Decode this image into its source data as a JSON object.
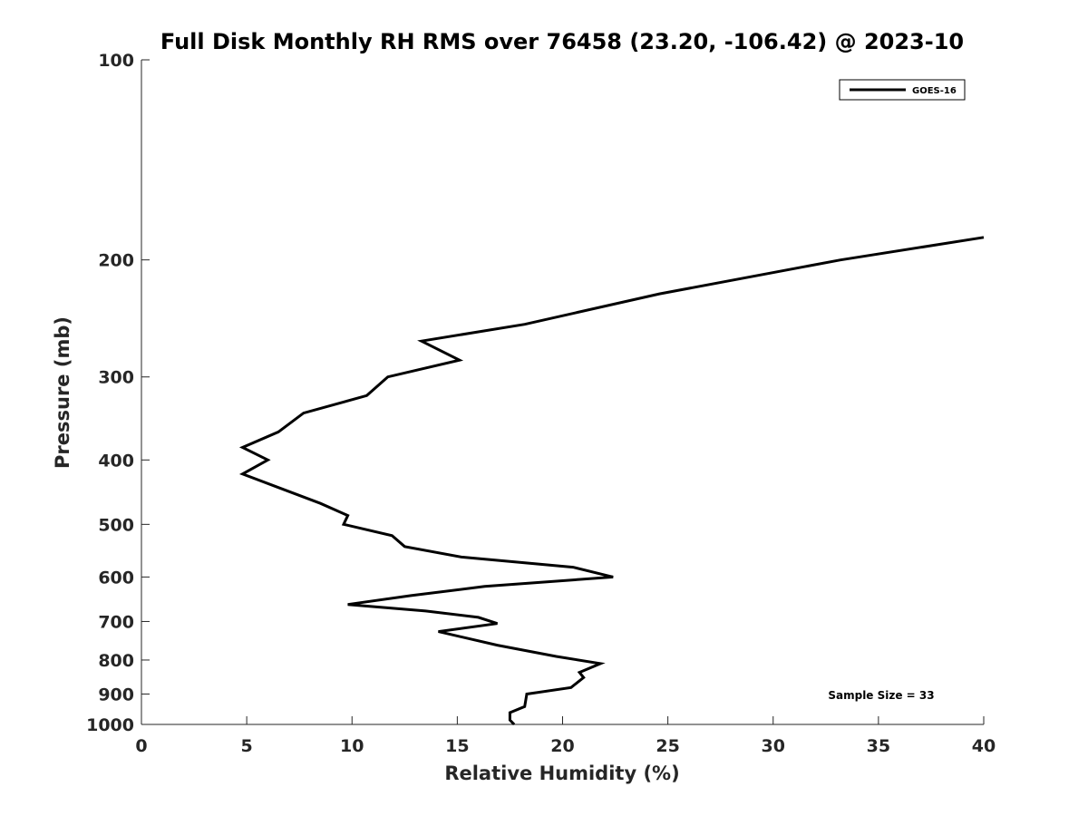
{
  "chart_data": {
    "type": "line",
    "title": "Full Disk Monthly RH RMS over 76458 (23.20, -106.42) @ 2023-10",
    "xlabel": "Relative Humidity (%)",
    "ylabel": "Pressure (mb)",
    "xlim": [
      0,
      40
    ],
    "ylim": [
      100,
      1000
    ],
    "y_scale": "log",
    "y_reversed": true,
    "x_ticks": [
      "0",
      "5",
      "10",
      "15",
      "20",
      "25",
      "30",
      "35",
      "40"
    ],
    "y_ticks": [
      100,
      200,
      300,
      400,
      500,
      600,
      700,
      800,
      900,
      1000
    ],
    "grid": false,
    "legend_position": "top-right",
    "annotation": "Sample Size = 33",
    "series": [
      {
        "name": "GOES-16",
        "color": "#000000",
        "points": [
          {
            "x": 40.0,
            "p": 185
          },
          {
            "x": 33.2,
            "p": 200
          },
          {
            "x": 24.6,
            "p": 225
          },
          {
            "x": 18.2,
            "p": 250
          },
          {
            "x": 13.3,
            "p": 265
          },
          {
            "x": 15.1,
            "p": 283
          },
          {
            "x": 11.7,
            "p": 300
          },
          {
            "x": 10.7,
            "p": 320
          },
          {
            "x": 7.7,
            "p": 340
          },
          {
            "x": 6.5,
            "p": 363
          },
          {
            "x": 4.8,
            "p": 383
          },
          {
            "x": 6.0,
            "p": 400
          },
          {
            "x": 4.8,
            "p": 420
          },
          {
            "x": 6.5,
            "p": 440
          },
          {
            "x": 8.5,
            "p": 465
          },
          {
            "x": 9.8,
            "p": 485
          },
          {
            "x": 9.6,
            "p": 500
          },
          {
            "x": 11.9,
            "p": 520
          },
          {
            "x": 12.5,
            "p": 540
          },
          {
            "x": 15.2,
            "p": 560
          },
          {
            "x": 20.5,
            "p": 580
          },
          {
            "x": 22.4,
            "p": 600
          },
          {
            "x": 16.3,
            "p": 620
          },
          {
            "x": 12.8,
            "p": 640
          },
          {
            "x": 9.8,
            "p": 660
          },
          {
            "x": 13.5,
            "p": 675
          },
          {
            "x": 16.0,
            "p": 690
          },
          {
            "x": 16.9,
            "p": 705
          },
          {
            "x": 14.1,
            "p": 725
          },
          {
            "x": 16.9,
            "p": 760
          },
          {
            "x": 19.7,
            "p": 790
          },
          {
            "x": 21.8,
            "p": 810
          },
          {
            "x": 20.8,
            "p": 835
          },
          {
            "x": 21.0,
            "p": 850
          },
          {
            "x": 20.4,
            "p": 880
          },
          {
            "x": 18.3,
            "p": 900
          },
          {
            "x": 18.2,
            "p": 940
          },
          {
            "x": 17.5,
            "p": 960
          },
          {
            "x": 17.5,
            "p": 985
          },
          {
            "x": 17.7,
            "p": 1000
          }
        ]
      }
    ]
  }
}
